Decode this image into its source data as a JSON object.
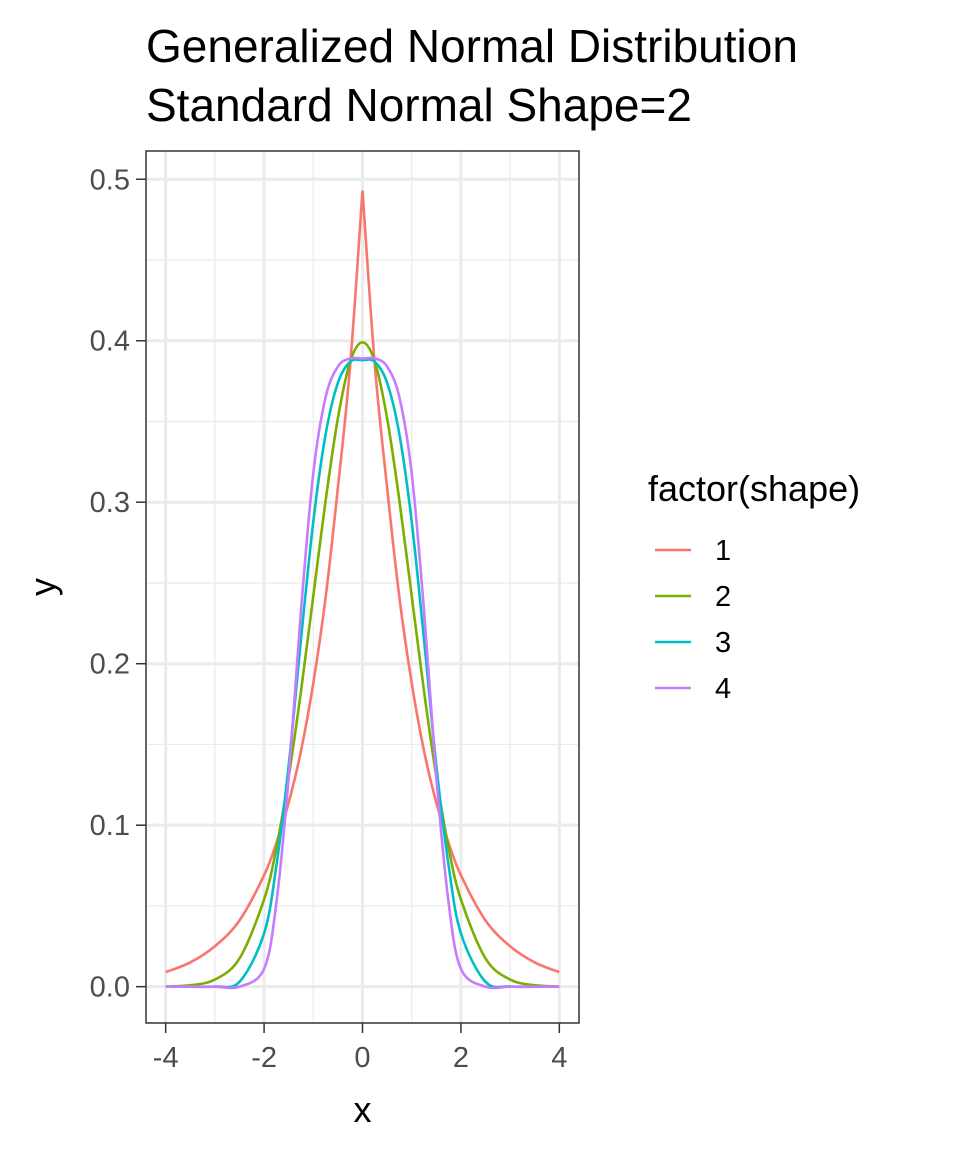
{
  "chart_data": {
    "type": "line",
    "title_lines": [
      "Generalized Normal Distribution",
      "Standard Normal Shape=2"
    ],
    "xlabel": "x",
    "ylabel": "y",
    "xlim": [
      -4.4,
      4.4
    ],
    "ylim": [
      -0.0225,
      0.5175
    ],
    "x_ticks": [
      -4,
      -2,
      0,
      2,
      4
    ],
    "x_tick_labels": [
      "-4",
      "-2",
      "0",
      "2",
      "4"
    ],
    "y_ticks": [
      0.0,
      0.1,
      0.2,
      0.3,
      0.4,
      0.5
    ],
    "y_tick_labels": [
      "0.0",
      "0.1",
      "0.2",
      "0.3",
      "0.4",
      "0.5"
    ],
    "grid": true,
    "legend": {
      "title": "factor(shape)",
      "position": "right"
    },
    "x": [
      -4,
      -3.5,
      -3,
      -2.5,
      -2,
      -1.75,
      -1.5,
      -1.25,
      -1,
      -0.75,
      -0.5,
      -0.25,
      0,
      0.25,
      0.5,
      0.75,
      1,
      1.25,
      1.5,
      1.75,
      2,
      2.5,
      3,
      3.5,
      4
    ],
    "series": [
      {
        "name": "1",
        "color": "#F8766D",
        "values": [
          0.009,
          0.015,
          0.025,
          0.041,
          0.069,
          0.089,
          0.114,
          0.146,
          0.188,
          0.241,
          0.309,
          0.385,
          0.493,
          0.385,
          0.309,
          0.241,
          0.188,
          0.146,
          0.114,
          0.089,
          0.069,
          0.041,
          0.025,
          0.015,
          0.009
        ]
      },
      {
        "name": "2",
        "color": "#7CAE00",
        "values": [
          0.0001,
          0.0009,
          0.0044,
          0.0175,
          0.054,
          0.086,
          0.13,
          0.183,
          0.242,
          0.301,
          0.352,
          0.387,
          0.399,
          0.387,
          0.352,
          0.301,
          0.242,
          0.183,
          0.13,
          0.086,
          0.054,
          0.0175,
          0.0044,
          0.0009,
          0.0001
        ]
      },
      {
        "name": "3",
        "color": "#00BFC4",
        "values": [
          0.0,
          0.0,
          0.0001,
          0.003,
          0.033,
          0.075,
          0.137,
          0.215,
          0.288,
          0.342,
          0.374,
          0.387,
          0.388,
          0.387,
          0.374,
          0.342,
          0.288,
          0.215,
          0.137,
          0.075,
          0.033,
          0.003,
          0.0001,
          0.0,
          0.0
        ]
      },
      {
        "name": "4",
        "color": "#C77CFF",
        "values": [
          0.0,
          0.0,
          0.0,
          0.0,
          0.011,
          0.052,
          0.13,
          0.233,
          0.318,
          0.365,
          0.384,
          0.389,
          0.389,
          0.389,
          0.384,
          0.365,
          0.318,
          0.233,
          0.13,
          0.052,
          0.011,
          0.0,
          0.0,
          0.0,
          0.0
        ]
      }
    ]
  }
}
